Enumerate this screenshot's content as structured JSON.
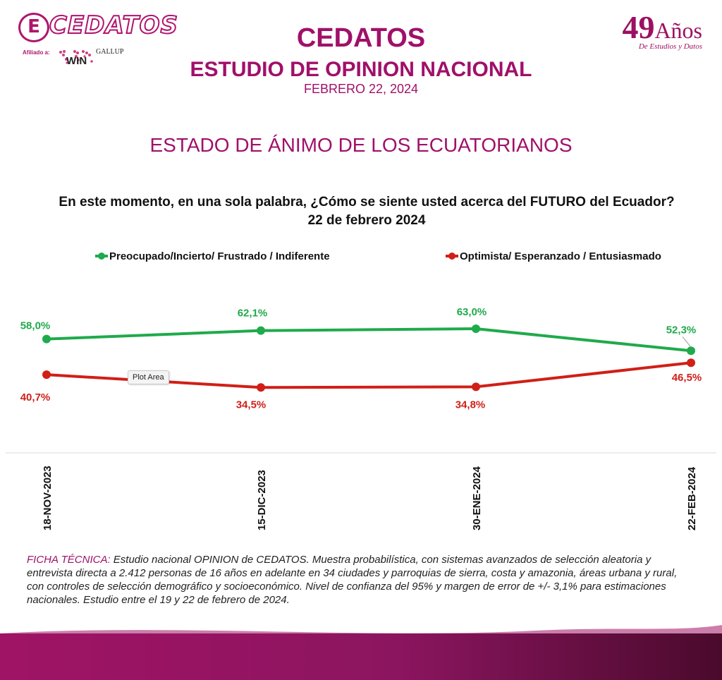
{
  "header": {
    "logo_text": "CEDATOS",
    "logo_badge": "E",
    "affiliate_label": "Afiliado a:",
    "affiliate_gallup": "GALLUP",
    "affiliate_win": "WIN",
    "anniversary_number": "49",
    "anniversary_word": "Años",
    "anniversary_sub": "De Estudios y Datos",
    "title": "CEDATOS",
    "subtitle": "ESTUDIO DE OPINION NACIONAL",
    "date": "FEBRERO 22, 2024",
    "section_title": "ESTADO DE ÁNIMO DE LOS ECUATORIANOS"
  },
  "question": {
    "line1": "En este momento, en una sola palabra, ¿Cómo se siente usted acerca del FUTURO del Ecuador?",
    "line2": "22 de febrero 2024"
  },
  "tooltip": "Plot Area",
  "colors": {
    "green": "#1faa4b",
    "red": "#d01f17",
    "accent": "#a0106a"
  },
  "chart_data": {
    "type": "line",
    "title": "En este momento, en una sola palabra, ¿Cómo se siente usted acerca del FUTURO del Ecuador?",
    "categories": [
      "18-NOV-2023",
      "15-DIC-2023",
      "30-ENE-2024",
      "22-FEB-2024"
    ],
    "series": [
      {
        "name": "Preocupado/Incierto/ Frustrado / Indiferente",
        "color": "#1faa4b",
        "values": [
          58.0,
          62.1,
          63.0,
          52.3
        ],
        "labels": [
          "58,0%",
          "62,1%",
          "63,0%",
          "52,3%"
        ]
      },
      {
        "name": "Optimista/ Esperanzado / Entusiasmado",
        "color": "#d01f17",
        "values": [
          40.7,
          34.5,
          34.8,
          46.5
        ],
        "labels": [
          "40,7%",
          "34,5%",
          "34,8%",
          "46,5%"
        ]
      }
    ],
    "ylim": [
      0,
      100
    ],
    "legend_position": "top",
    "grid": false
  },
  "ficha": {
    "label": "FICHA TÉCNICA:",
    "text": " Estudio nacional OPINION de CEDATOS. Muestra probabilística, con sistemas avanzados de selección aleatoria y entrevista directa a 2.412  personas de 16 años en adelante en 34 ciudades y parroquias de sierra, costa y amazonia, áreas urbana y rural, con controles de selección demográfico y socioeconómico. Nivel de confianza del 95% y margen de error de +/- 3,1% para estimaciones nacionales. Estudio entre el 19 y 22 de febrero de 2024."
  }
}
